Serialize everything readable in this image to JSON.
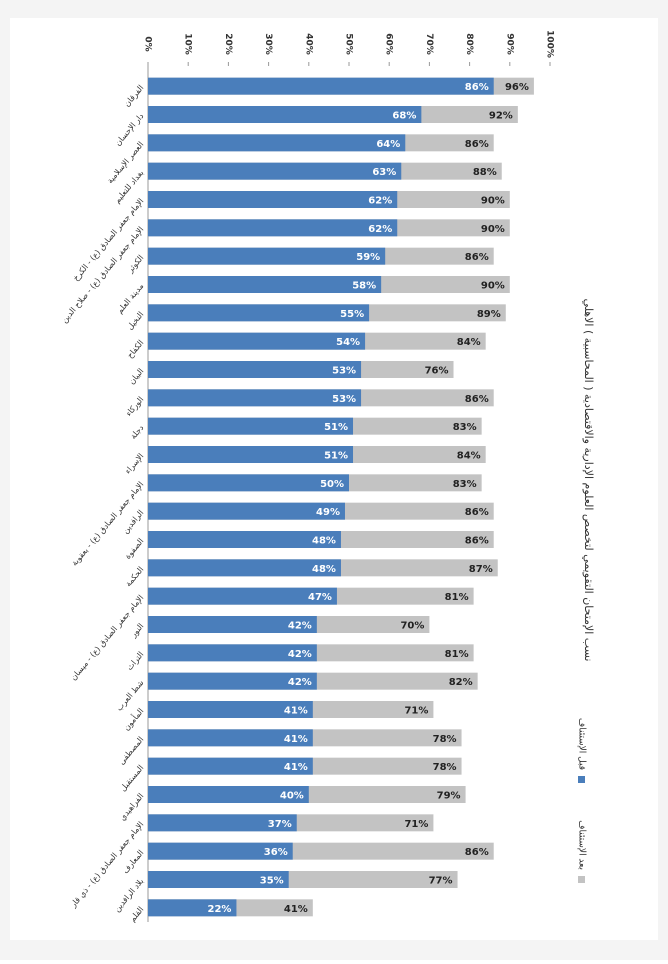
{
  "chart_data": {
    "type": "bar",
    "orientation": "horizontal",
    "title": "نسب الإمتحان التقويمي لتخصص العلوم الإدارية والاقتصادية ( المحاسبية ) الاهلي",
    "categories": [
      "الفرقان",
      "دار الإحسان",
      "العصر الإسلامية",
      "بغداد للتعليم",
      "الإمام جعفر الصادق (ع) - الكرخ",
      "الإمام جعفر الصادق (ع) - صلاح الدين",
      "الكوثر",
      "مدينة العلم",
      "النخيل",
      "الكفاح",
      "البيان",
      "الوركاء",
      "دجلة",
      "الإسراء",
      "الإمام جعفر الصادق (ع) - بعقوبة",
      "الرافدين",
      "الصفوة",
      "الحكمة",
      "الإمام جعفر الصادق (ع) - ميسان",
      "النور",
      "التراث",
      "شط العرب",
      "المأمون",
      "المصطفى",
      "المستقبل",
      "الفراهيدي",
      "الإمام جعفر الصادق (ع) - ذي قار",
      "المعارف",
      "بلاد الرافدين",
      "القلم"
    ],
    "series": [
      {
        "name": "بعد الإستئناف",
        "color": "#c3c3c3",
        "label_color": "#222222",
        "values": [
          96,
          92,
          86,
          88,
          90,
          90,
          86,
          90,
          89,
          84,
          76,
          86,
          83,
          84,
          83,
          86,
          86,
          87,
          81,
          70,
          81,
          82,
          71,
          78,
          78,
          79,
          71,
          86,
          77,
          41
        ],
        "value_labels": [
          "96%",
          "92%",
          "86%",
          "88%",
          "90%",
          "90%",
          "86%",
          "90%",
          "89%",
          "84%",
          "76%",
          "86%",
          "83%",
          "84%",
          "83%",
          "86%",
          "86%",
          "87%",
          "81%",
          "70%",
          "81%",
          "82%",
          "71%",
          "78%",
          "78%",
          "79%",
          "71%",
          "86%",
          "77%",
          "41%"
        ]
      },
      {
        "name": "قبل الإستئناف",
        "color": "#4a7ebb",
        "label_color": "#ffffff",
        "values": [
          86,
          68,
          64,
          63,
          62,
          62,
          59,
          58,
          55,
          54,
          53,
          53,
          51,
          51,
          50,
          49,
          48,
          48,
          47,
          42,
          42,
          42,
          41,
          41,
          41,
          40,
          37,
          36,
          35,
          22
        ],
        "value_labels": [
          "86%",
          "68%",
          "64%",
          "63%",
          "62%",
          "62%",
          "59%",
          "58%",
          "55%",
          "54%",
          "53%",
          "53%",
          "51%",
          "51%",
          "50%",
          "49%",
          "48%",
          "48%",
          "47%",
          "42%",
          "42%",
          "42%",
          "41%",
          "41%",
          "41%",
          "40%",
          "37%",
          "36%",
          "35%",
          "22%"
        ]
      }
    ],
    "xlim": [
      0,
      100
    ],
    "xticks": [
      {
        "value": 0,
        "label": "0%"
      },
      {
        "value": 10,
        "label": "10%"
      },
      {
        "value": 20,
        "label": "20%"
      },
      {
        "value": 30,
        "label": "30%"
      },
      {
        "value": 40,
        "label": "40%"
      },
      {
        "value": 50,
        "label": "50%"
      },
      {
        "value": 60,
        "label": "60%"
      },
      {
        "value": 70,
        "label": "70%"
      },
      {
        "value": 80,
        "label": "80%"
      },
      {
        "value": 90,
        "label": "90%"
      },
      {
        "value": 100,
        "label": "100%"
      }
    ],
    "grid": false,
    "legend": "bottom-right"
  }
}
